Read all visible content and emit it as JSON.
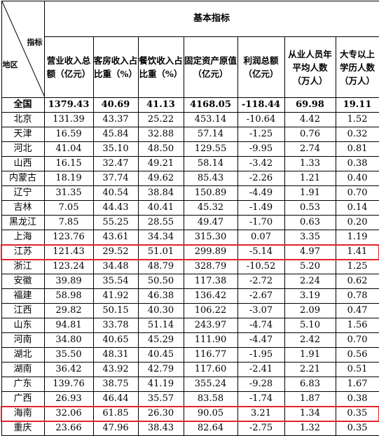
{
  "header": {
    "group_title": "基本指标",
    "corner_top": "指标",
    "corner_bottom": "地区",
    "columns": [
      "营业收入总额（亿元）",
      "客房收入占比重（%）",
      "餐饮收入占比重（%）",
      "固定资产原值（亿元）",
      "利润总额（亿元）",
      "从业人员年平均人数（万人）",
      "大专以上学历人数（万人）"
    ]
  },
  "total_row": {
    "region": "全国",
    "values": [
      "1379.43",
      "40.69",
      "41.13",
      "4168.05",
      "-118.44",
      "69.98",
      "19.11"
    ]
  },
  "rows": [
    {
      "region": "北京",
      "values": [
        "131.39",
        "43.37",
        "25.22",
        "453.14",
        "-10.64",
        "4.42",
        "1.52"
      ]
    },
    {
      "region": "天津",
      "values": [
        "16.59",
        "45.84",
        "32.88",
        "57.14",
        "-1.25",
        "0.76",
        "0.32"
      ]
    },
    {
      "region": "河北",
      "values": [
        "41.04",
        "35.10",
        "48.50",
        "129.55",
        "-9.95",
        "2.74",
        "0.81"
      ]
    },
    {
      "region": "山西",
      "values": [
        "16.15",
        "32.47",
        "49.21",
        "58.14",
        "-3.42",
        "1.33",
        "0.38"
      ]
    },
    {
      "region": "内蒙古",
      "values": [
        "18.19",
        "37.74",
        "49.62",
        "85.43",
        "-2.26",
        "1.21",
        "0.40"
      ]
    },
    {
      "region": "辽宁",
      "values": [
        "31.35",
        "40.54",
        "38.84",
        "150.89",
        "-4.49",
        "1.91",
        "0.70"
      ]
    },
    {
      "region": "吉林",
      "values": [
        "7.05",
        "44.43",
        "40.41",
        "45.32",
        "-1.49",
        "0.53",
        "0.14"
      ]
    },
    {
      "region": "黑龙江",
      "values": [
        "7.85",
        "55.25",
        "28.55",
        "49.47",
        "-1.70",
        "0.63",
        "0.20"
      ]
    },
    {
      "region": "上海",
      "values": [
        "123.76",
        "43.61",
        "34.34",
        "315.30",
        "0.07",
        "3.35",
        "1.19"
      ]
    },
    {
      "region": "江苏",
      "values": [
        "121.43",
        "29.52",
        "51.01",
        "299.89",
        "-5.14",
        "4.97",
        "1.41"
      ],
      "highlight": true
    },
    {
      "region": "浙江",
      "values": [
        "123.24",
        "34.48",
        "48.79",
        "328.79",
        "-10.52",
        "5.20",
        "1.25"
      ]
    },
    {
      "region": "安徽",
      "values": [
        "39.89",
        "35.54",
        "50.50",
        "117.38",
        "-2.72",
        "2.24",
        "0.62"
      ]
    },
    {
      "region": "福建",
      "values": [
        "58.98",
        "41.92",
        "46.38",
        "136.42",
        "-2.67",
        "3.19",
        "0.78"
      ]
    },
    {
      "region": "江西",
      "values": [
        "29.82",
        "50.15",
        "40.30",
        "106.22",
        "-3.07",
        "2.09",
        "0.47"
      ]
    },
    {
      "region": "山东",
      "values": [
        "94.81",
        "33.78",
        "51.14",
        "243.97",
        "-4.74",
        "5.10",
        "1.56"
      ]
    },
    {
      "region": "河南",
      "values": [
        "34.80",
        "40.65",
        "45.29",
        "111.90",
        "-4.47",
        "2.42",
        "0.70"
      ]
    },
    {
      "region": "湖北",
      "values": [
        "35.50",
        "48.31",
        "40.45",
        "116.77",
        "-1.95",
        "1.91",
        "0.56"
      ]
    },
    {
      "region": "湖南",
      "values": [
        "36.42",
        "43.92",
        "42.79",
        "117.60",
        "-2.41",
        "2.21",
        "0.51"
      ]
    },
    {
      "region": "广东",
      "values": [
        "139.76",
        "38.75",
        "41.19",
        "355.24",
        "-9.28",
        "6.83",
        "1.67"
      ]
    },
    {
      "region": "广西",
      "values": [
        "26.93",
        "46.44",
        "35.57",
        "83.58",
        "-1.74",
        "1.87",
        "0.38"
      ]
    },
    {
      "region": "海南",
      "values": [
        "32.06",
        "61.85",
        "26.30",
        "90.05",
        "3.21",
        "1.34",
        "0.35"
      ],
      "highlight": true
    },
    {
      "region": "重庆",
      "values": [
        "23.66",
        "47.96",
        "38.43",
        "82.64",
        "-2.75",
        "1.32",
        "0.35"
      ]
    }
  ]
}
